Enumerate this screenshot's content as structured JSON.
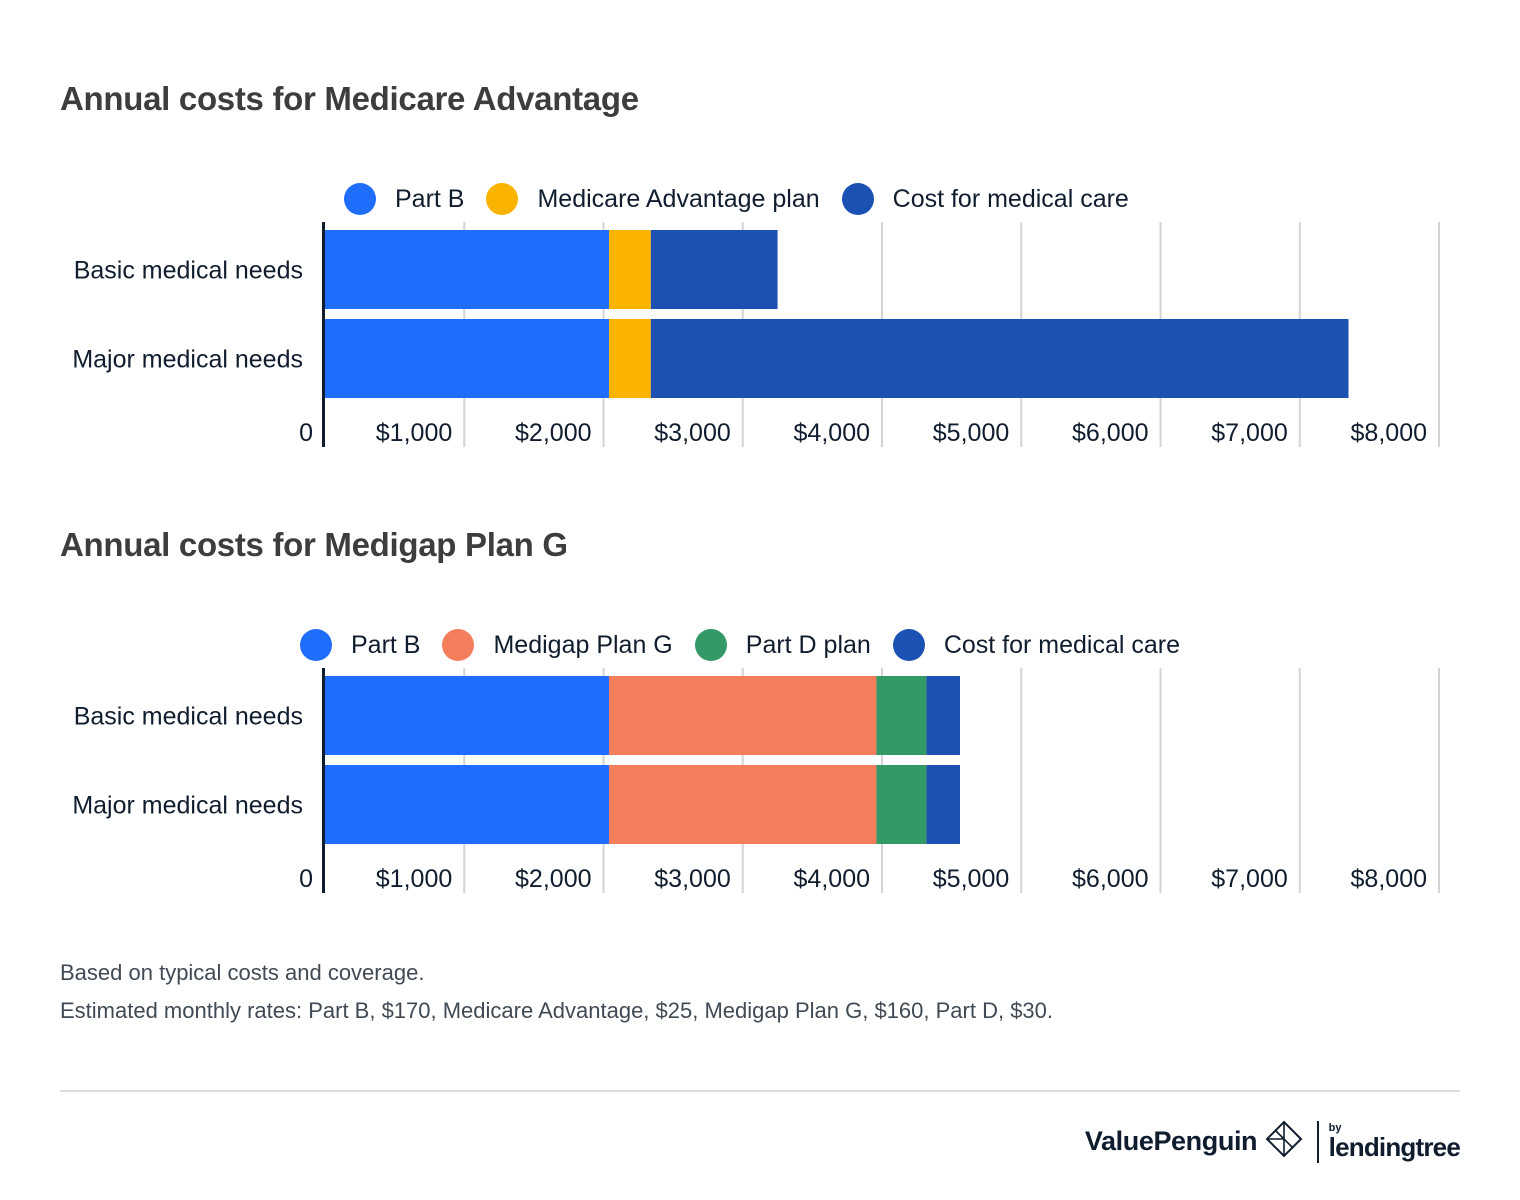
{
  "chart_data": [
    {
      "type": "bar",
      "orientation": "horizontal",
      "stacked": true,
      "title": "Annual costs for Medicare Advantage",
      "categories": [
        "Basic medical needs",
        "Major medical needs"
      ],
      "series": [
        {
          "name": "Part B",
          "values": [
            2040,
            2040
          ],
          "color": "#1f6dfb"
        },
        {
          "name": "Medicare Advantage plan",
          "values": [
            300,
            300
          ],
          "color": "#fab400"
        },
        {
          "name": "Cost for medical care",
          "values": [
            910,
            5010
          ],
          "color": "#1b51b3"
        }
      ],
      "x_ticks": [
        0,
        1000,
        2000,
        3000,
        4000,
        5000,
        6000,
        7000,
        8000
      ],
      "x_tick_labels": [
        "0",
        "$1,000",
        "$2,000",
        "$3,000",
        "$4,000",
        "$5,000",
        "$6,000",
        "$7,000",
        "$8,000"
      ],
      "xlim": [
        0,
        8000
      ],
      "grid": true,
      "legend_position": "top"
    },
    {
      "type": "bar",
      "orientation": "horizontal",
      "stacked": true,
      "title": "Annual costs for Medigap Plan G",
      "categories": [
        "Basic medical needs",
        "Major medical needs"
      ],
      "series": [
        {
          "name": "Part B",
          "values": [
            2040,
            2040
          ],
          "color": "#1f6dfb"
        },
        {
          "name": "Medigap Plan G",
          "values": [
            1920,
            1920
          ],
          "color": "#f47d5b"
        },
        {
          "name": "Part D plan",
          "values": [
            360,
            360
          ],
          "color": "#339966"
        },
        {
          "name": "Cost for medical care",
          "values": [
            240,
            240
          ],
          "color": "#1b51b3"
        }
      ],
      "x_ticks": [
        0,
        1000,
        2000,
        3000,
        4000,
        5000,
        6000,
        7000,
        8000
      ],
      "x_tick_labels": [
        "0",
        "$1,000",
        "$2,000",
        "$3,000",
        "$4,000",
        "$5,000",
        "$6,000",
        "$7,000",
        "$8,000"
      ],
      "xlim": [
        0,
        8000
      ],
      "grid": true,
      "legend_position": "top"
    }
  ],
  "footnotes": [
    "Based on typical costs and coverage.",
    "Estimated monthly rates: Part B, $170, Medicare Advantage, $25, Medigap Plan G, $160, Part D, $30."
  ],
  "branding": {
    "name": "ValuePenguin",
    "by": "by",
    "partner": "lendingtree",
    "logo_icon": "diamond-logo-icon"
  }
}
